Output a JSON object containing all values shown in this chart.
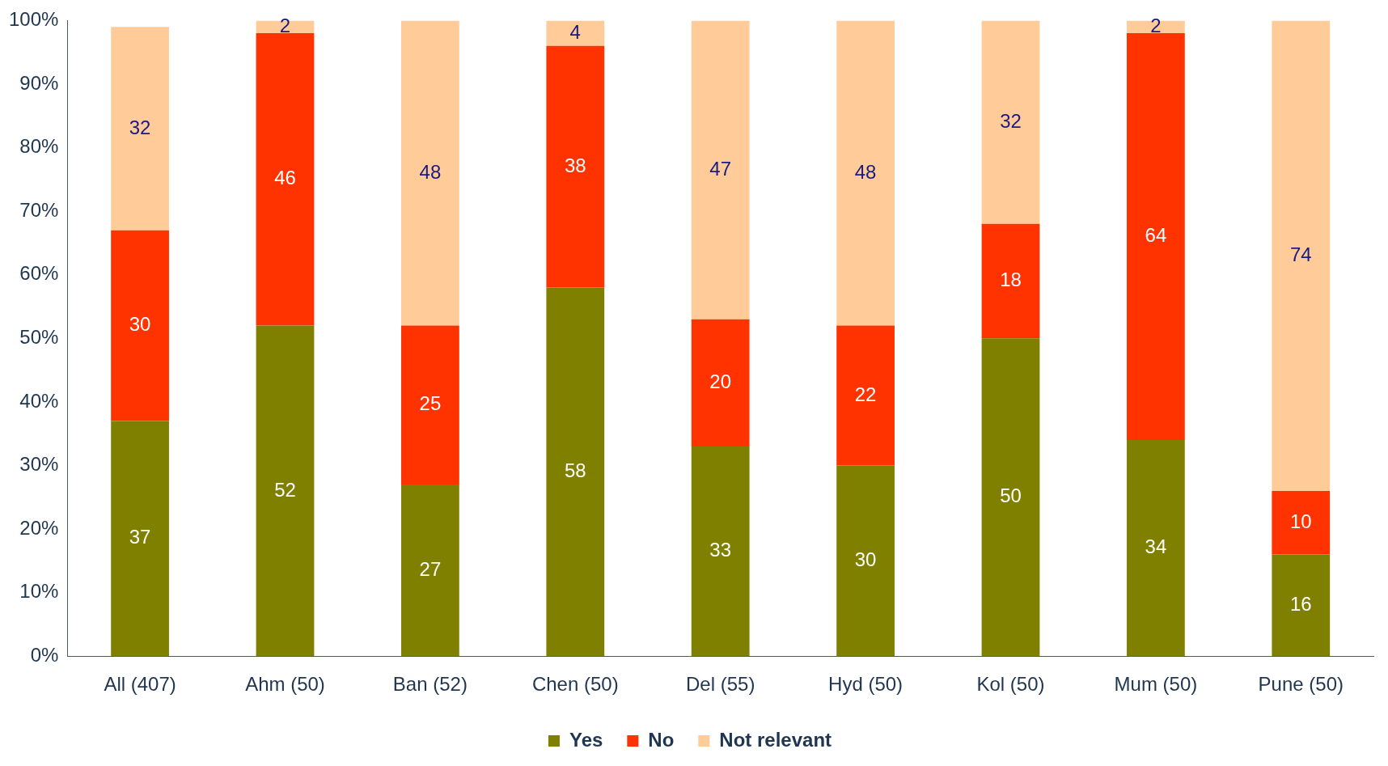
{
  "chart_data": {
    "type": "bar",
    "stacked": true,
    "categories": [
      "All (407)",
      "Ahm (50)",
      "Ban (52)",
      "Chen (50)",
      "Del (55)",
      "Hyd (50)",
      "Kol (50)",
      "Mum (50)",
      "Pune (50)"
    ],
    "series": [
      {
        "name": "Yes",
        "color": "#808000",
        "values": [
          37,
          52,
          27,
          58,
          33,
          30,
          50,
          34,
          16
        ]
      },
      {
        "name": "No",
        "color": "#ff3300",
        "values": [
          30,
          46,
          25,
          38,
          20,
          22,
          18,
          64,
          10
        ]
      },
      {
        "name": "Not relevant",
        "color": "#ffcc99",
        "values": [
          32,
          2,
          48,
          4,
          47,
          48,
          32,
          2,
          74
        ]
      }
    ],
    "ylim": [
      0,
      100
    ],
    "yticks": [
      {
        "value": 0,
        "label": "0%"
      },
      {
        "value": 10,
        "label": "10%"
      },
      {
        "value": 20,
        "label": "20%"
      },
      {
        "value": 30,
        "label": "30%"
      },
      {
        "value": 40,
        "label": "40%"
      },
      {
        "value": 50,
        "label": "50%"
      },
      {
        "value": 60,
        "label": "60%"
      },
      {
        "value": 70,
        "label": "70%"
      },
      {
        "value": 80,
        "label": "80%"
      },
      {
        "value": 90,
        "label": "90%"
      },
      {
        "value": 100,
        "label": "100%"
      }
    ],
    "data_labels": true,
    "grid": false,
    "legend": "bottom"
  }
}
